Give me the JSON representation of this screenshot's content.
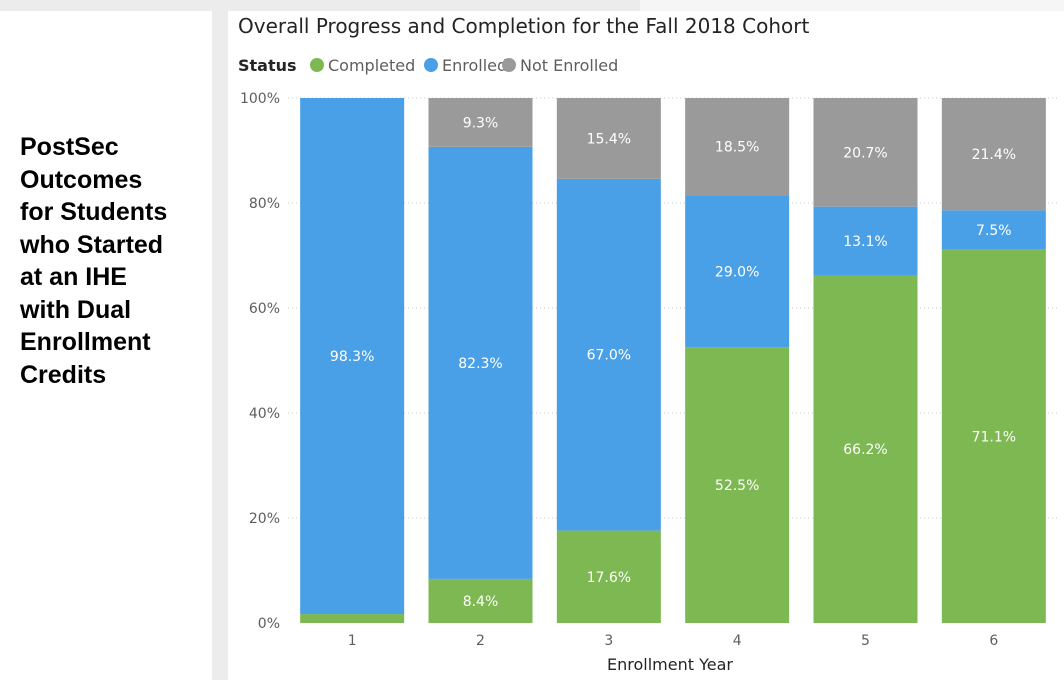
{
  "side_title": "PostSec\nOutcomes\nfor Students\nwho Started\nat an IHE\nwith Dual\nEnrollment\nCredits",
  "colors": {
    "completed": "#7db852",
    "enrolled": "#4aa0e6",
    "not_enrolled": "#9a9a9a"
  },
  "chart_data": {
    "type": "bar",
    "stacked": true,
    "title": "Overall Progress and Completion for the Fall 2018 Cohort",
    "legend_title": "Status",
    "legend_position": "top-left",
    "xlabel": "Enrollment Year",
    "ylabel": "",
    "ylim": [
      0,
      100
    ],
    "y_ticks": [
      "0%",
      "20%",
      "40%",
      "60%",
      "80%",
      "100%"
    ],
    "grid": true,
    "categories": [
      "1",
      "2",
      "3",
      "4",
      "5",
      "6"
    ],
    "series": [
      {
        "name": "Completed",
        "color": "#7db852",
        "values": [
          1.7,
          8.4,
          17.6,
          52.5,
          66.2,
          71.1
        ],
        "labels": [
          "",
          "8.4%",
          "17.6%",
          "52.5%",
          "66.2%",
          "71.1%"
        ]
      },
      {
        "name": "Enrolled",
        "color": "#4aa0e6",
        "values": [
          98.3,
          82.3,
          67.0,
          29.0,
          13.1,
          7.5
        ],
        "labels": [
          "98.3%",
          "82.3%",
          "67.0%",
          "29.0%",
          "13.1%",
          "7.5%"
        ]
      },
      {
        "name": "Not Enrolled",
        "color": "#9a9a9a",
        "values": [
          0,
          9.3,
          15.4,
          18.5,
          20.7,
          21.4
        ],
        "labels": [
          "",
          "9.3%",
          "15.4%",
          "18.5%",
          "20.7%",
          "21.4%"
        ]
      }
    ]
  }
}
